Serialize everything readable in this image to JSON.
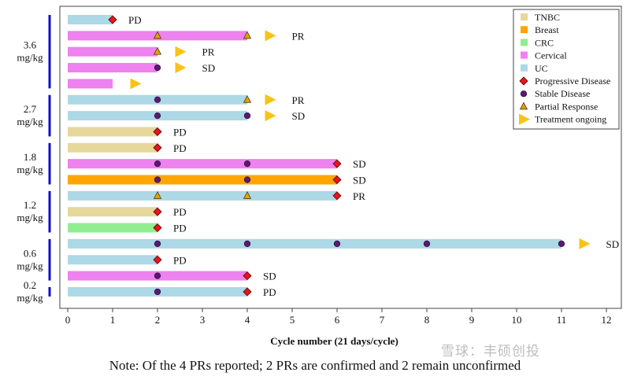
{
  "chart_data": {
    "type": "swimmer",
    "xlabel": "Cycle number (21 days/cycle)",
    "xlim": [
      0,
      12
    ],
    "xticks": [
      0,
      1,
      2,
      3,
      4,
      5,
      6,
      7,
      8,
      9,
      10,
      11,
      12
    ],
    "colors": {
      "TNBC": "#e6d79c",
      "Breast": "#ffa500",
      "CRC": "#90ee90",
      "Cervical": "#ee82ee",
      "UC": "#add8e6",
      "pd_marker": "#e8141e",
      "sd_marker": "#5c1a72",
      "pr_marker": "#e0a100",
      "ongoing_arrow": "#f8c316",
      "dose_bracket": "#1010cc"
    },
    "legend": {
      "position": "top-right",
      "tumor_types": [
        "TNBC",
        "Breast",
        "CRC",
        "Cervical",
        "UC"
      ],
      "markers": [
        {
          "label": "Progressive Disease",
          "symbol": "diamond"
        },
        {
          "label": "Stable Disease",
          "symbol": "circle"
        },
        {
          "label": "Partial Response",
          "symbol": "triangle"
        },
        {
          "label": "Treatment ongoing",
          "symbol": "arrow"
        }
      ]
    },
    "dose_groups": [
      {
        "label_line1": "3.6",
        "label_line2": "mg/kg",
        "first_row": 0,
        "last_row": 4
      },
      {
        "label_line1": "2.7",
        "label_line2": "mg/kg",
        "first_row": 5,
        "last_row": 7
      },
      {
        "label_line1": "1.8",
        "label_line2": "mg/kg",
        "first_row": 8,
        "last_row": 10
      },
      {
        "label_line1": "1.2",
        "label_line2": "mg/kg",
        "first_row": 11,
        "last_row": 13
      },
      {
        "label_line1": "0.6",
        "label_line2": "mg/kg",
        "first_row": 14,
        "last_row": 16
      },
      {
        "label_line1": "0.2",
        "label_line2": "mg/kg",
        "first_row": 17,
        "last_row": 17
      }
    ],
    "patients": [
      {
        "type": "UC",
        "duration": 1,
        "pd": [
          1
        ],
        "sd": [],
        "pr": [],
        "ongoing": null,
        "label": "PD"
      },
      {
        "type": "Cervical",
        "duration": 4,
        "pd": [],
        "sd": [],
        "pr": [
          2,
          4
        ],
        "ongoing": 4.5,
        "label": "PR"
      },
      {
        "type": "Cervical",
        "duration": 2,
        "pd": [],
        "sd": [],
        "pr": [
          2
        ],
        "ongoing": 2.5,
        "label": "PR"
      },
      {
        "type": "Cervical",
        "duration": 2,
        "pd": [],
        "sd": [
          2
        ],
        "pr": [],
        "ongoing": 2.5,
        "label": "SD"
      },
      {
        "type": "Cervical",
        "duration": 1,
        "pd": [],
        "sd": [],
        "pr": [],
        "ongoing": 1.5,
        "label": ""
      },
      {
        "type": "UC",
        "duration": 4,
        "pd": [],
        "sd": [
          2
        ],
        "pr": [
          4
        ],
        "ongoing": 4.5,
        "label": "PR"
      },
      {
        "type": "UC",
        "duration": 4,
        "pd": [],
        "sd": [
          2,
          4
        ],
        "pr": [],
        "ongoing": 4.5,
        "label": "SD"
      },
      {
        "type": "TNBC",
        "duration": 2,
        "pd": [
          2
        ],
        "sd": [],
        "pr": [],
        "ongoing": null,
        "label": "PD"
      },
      {
        "type": "TNBC",
        "duration": 2,
        "pd": [
          2
        ],
        "sd": [],
        "pr": [],
        "ongoing": null,
        "label": "PD"
      },
      {
        "type": "Cervical",
        "duration": 6,
        "pd": [
          6
        ],
        "sd": [
          2,
          4
        ],
        "pr": [],
        "ongoing": null,
        "label": "SD"
      },
      {
        "type": "Breast",
        "duration": 6,
        "pd": [
          6
        ],
        "sd": [
          2,
          4
        ],
        "pr": [],
        "ongoing": null,
        "label": "SD"
      },
      {
        "type": "UC",
        "duration": 6,
        "pd": [
          6
        ],
        "sd": [],
        "pr": [
          2,
          4
        ],
        "ongoing": null,
        "label": "PR"
      },
      {
        "type": "TNBC",
        "duration": 2,
        "pd": [
          2
        ],
        "sd": [],
        "pr": [],
        "ongoing": null,
        "label": "PD"
      },
      {
        "type": "CRC",
        "duration": 2,
        "pd": [
          2
        ],
        "sd": [],
        "pr": [],
        "ongoing": null,
        "label": "PD"
      },
      {
        "type": "UC",
        "duration": 11,
        "pd": [],
        "sd": [
          2,
          4,
          6,
          8,
          11
        ],
        "pr": [],
        "ongoing": 11.5,
        "label": "SD"
      },
      {
        "type": "UC",
        "duration": 2,
        "pd": [
          2
        ],
        "sd": [],
        "pr": [],
        "ongoing": null,
        "label": "PD"
      },
      {
        "type": "Cervical",
        "duration": 4,
        "pd": [
          4
        ],
        "sd": [
          2
        ],
        "pr": [],
        "ongoing": null,
        "label": "SD"
      },
      {
        "type": "UC",
        "duration": 4,
        "pd": [
          4
        ],
        "sd": [
          2
        ],
        "pr": [],
        "ongoing": null,
        "label": "PD"
      }
    ]
  },
  "note": "Note: Of the 4 PRs reported; 2 PRs are confirmed and 2 remain unconfirmed",
  "watermark": "雪球：丰硕创投"
}
